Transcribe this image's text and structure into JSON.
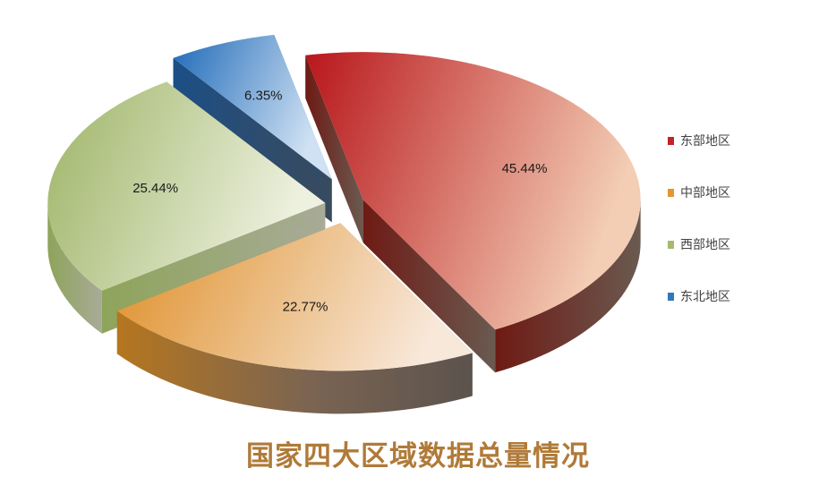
{
  "chart_data": {
    "type": "pie",
    "title": "国家四大区域数据总量情况",
    "categories": [
      "东部地区",
      "中部地区",
      "西部地区",
      "东北地区"
    ],
    "values": [
      45.44,
      22.77,
      25.44,
      6.35
    ],
    "value_labels": [
      "45.44%",
      "22.77%",
      "25.44%",
      "6.35%"
    ],
    "colors": [
      "#b8161c",
      "#e0922c",
      "#9fb56a",
      "#2f78be"
    ],
    "legend_position": "right",
    "style": "3d-exploded"
  }
}
